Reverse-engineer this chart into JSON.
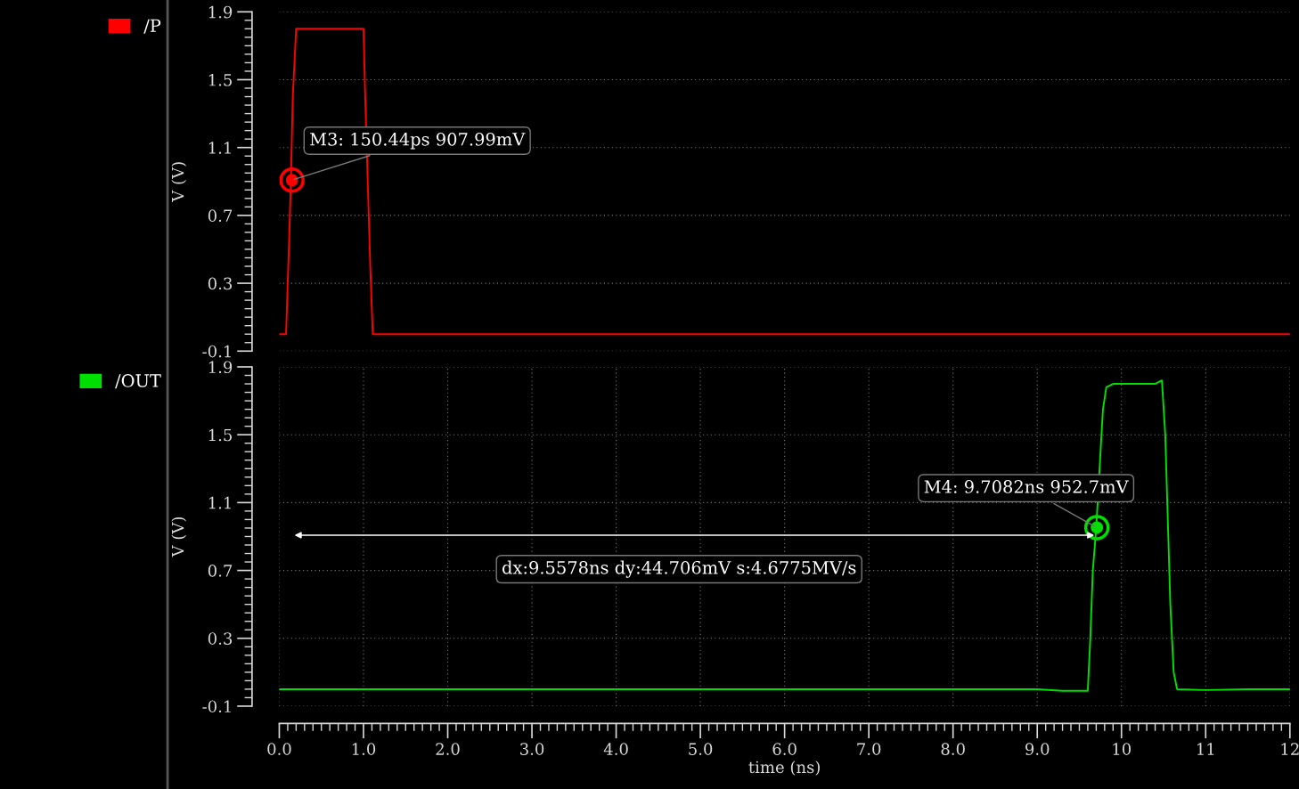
{
  "chart_data": [
    {
      "type": "line",
      "ylabel": "V (V)",
      "xlim": [
        0,
        12
      ],
      "ylim": [
        -0.1,
        1.9
      ],
      "yticks": [
        -0.1,
        0.3,
        0.7,
        1.1,
        1.5,
        1.9
      ],
      "tick_labels": "y",
      "grid": true,
      "legend": "left",
      "marker": "none",
      "line_style": "solid",
      "series": [
        {
          "name": "/P",
          "color": "#ff0000",
          "x": [
            0,
            0.08,
            0.1,
            0.12,
            0.14,
            0.16,
            0.2,
            1.0,
            1.02,
            1.05,
            1.08,
            1.11,
            3,
            6,
            9,
            12
          ],
          "values": [
            0,
            0,
            0.3,
            0.6,
            0.95,
            1.4,
            1.8,
            1.8,
            1.4,
            0.9,
            0.4,
            0,
            0,
            0,
            0,
            0
          ]
        }
      ],
      "annotations": [
        {
          "text": "M3: 150.44ps 907.99mV",
          "x": 0.15044,
          "y": 0.90799
        }
      ]
    },
    {
      "type": "line",
      "ylabel": "V (V)",
      "xlabel": "time (ns)",
      "xlim": [
        0,
        12
      ],
      "ylim": [
        -0.1,
        1.9
      ],
      "yticks": [
        -0.1,
        0.3,
        0.7,
        1.1,
        1.5,
        1.9
      ],
      "xticks": [
        {
          "value": 0,
          "label": "0.0"
        },
        {
          "value": 1,
          "label": "1.0"
        },
        {
          "value": 2,
          "label": "2.0"
        },
        {
          "value": 3,
          "label": "3.0"
        },
        {
          "value": 4,
          "label": "4.0"
        },
        {
          "value": 5,
          "label": "5.0"
        },
        {
          "value": 6,
          "label": "6.0"
        },
        {
          "value": 7,
          "label": "7.0"
        },
        {
          "value": 8,
          "label": "8.0"
        },
        {
          "value": 9,
          "label": "9.0"
        },
        {
          "value": 10,
          "label": "10"
        },
        {
          "value": 11,
          "label": "11"
        },
        {
          "value": 12,
          "label": "12"
        }
      ],
      "grid": true,
      "legend": "left",
      "marker": "none",
      "line_style": "solid",
      "series": [
        {
          "name": "/OUT",
          "color": "#00e000",
          "x": [
            0,
            3,
            6,
            9.0,
            9.3,
            9.5,
            9.55,
            9.6,
            9.63,
            9.66,
            9.7,
            9.74,
            9.78,
            9.82,
            9.9,
            10.2,
            10.4,
            10.48,
            10.52,
            10.55,
            10.58,
            10.62,
            10.66,
            11,
            11.5,
            12
          ],
          "values": [
            0,
            0,
            0,
            0,
            -0.01,
            -0.01,
            -0.01,
            -0.01,
            0.3,
            0.7,
            0.95,
            1.3,
            1.65,
            1.78,
            1.8,
            1.8,
            1.8,
            1.82,
            1.5,
            1.0,
            0.5,
            0.1,
            0,
            -0.005,
            0,
            0
          ]
        }
      ],
      "annotations": [
        {
          "text": "M4: 9.7082ns 952.7mV",
          "x": 9.7082,
          "y": 0.9527
        },
        "dx:9.5578ns dy:44.706mV s:4.6775MV/s"
      ]
    }
  ]
}
